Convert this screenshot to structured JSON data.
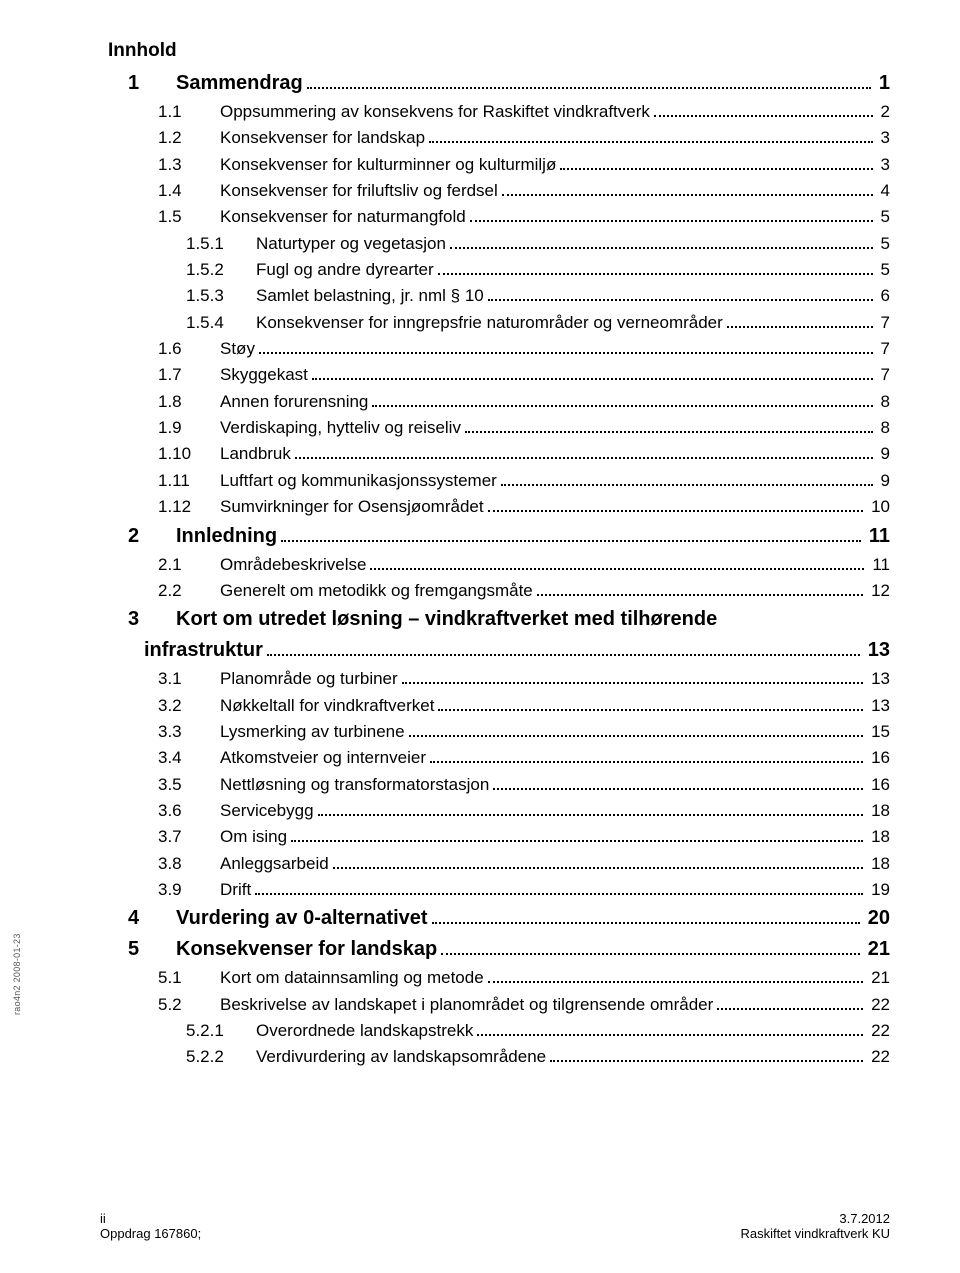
{
  "side_label": "rao4n2 2008-01-23",
  "toc_title": "Innhold",
  "entries": [
    {
      "level": 0,
      "num": "1",
      "label": "Sammendrag",
      "page": "1"
    },
    {
      "level": 1,
      "num": "1.1",
      "label": "Oppsummering av konsekvens for Raskiftet vindkraftverk",
      "page": "2"
    },
    {
      "level": 1,
      "num": "1.2",
      "label": "Konsekvenser for landskap",
      "page": "3"
    },
    {
      "level": 1,
      "num": "1.3",
      "label": "Konsekvenser for kulturminner og kulturmiljø",
      "page": "3"
    },
    {
      "level": 1,
      "num": "1.4",
      "label": "Konsekvenser for friluftsliv og ferdsel",
      "page": "4"
    },
    {
      "level": 1,
      "num": "1.5",
      "label": "Konsekvenser for naturmangfold",
      "page": "5"
    },
    {
      "level": 2,
      "num": "1.5.1",
      "label": "Naturtyper og vegetasjon",
      "page": "5"
    },
    {
      "level": 2,
      "num": "1.5.2",
      "label": "Fugl og andre dyrearter",
      "page": "5"
    },
    {
      "level": 2,
      "num": "1.5.3",
      "label": "Samlet belastning, jr. nml § 10",
      "page": "6"
    },
    {
      "level": 2,
      "num": "1.5.4",
      "label": "Konsekvenser for inngrepsfrie naturområder og verneområder",
      "page": "7"
    },
    {
      "level": 1,
      "num": "1.6",
      "label": "Støy",
      "page": "7"
    },
    {
      "level": 1,
      "num": "1.7",
      "label": "Skyggekast",
      "page": "7"
    },
    {
      "level": 1,
      "num": "1.8",
      "label": "Annen forurensning",
      "page": "8"
    },
    {
      "level": 1,
      "num": "1.9",
      "label": "Verdiskaping, hytteliv og reiseliv",
      "page": "8"
    },
    {
      "level": 1,
      "num": "1.10",
      "label": "Landbruk",
      "page": "9"
    },
    {
      "level": 1,
      "num": "1.11",
      "label": "Luftfart og kommunikasjonssystemer",
      "page": "9"
    },
    {
      "level": 1,
      "num": "1.12",
      "label": "Sumvirkninger for Osensjøområdet",
      "page": "10"
    },
    {
      "level": 0,
      "num": "2",
      "label": "Innledning",
      "page": "11"
    },
    {
      "level": 1,
      "num": "2.1",
      "label": "Områdebeskrivelse",
      "page": "11"
    },
    {
      "level": 1,
      "num": "2.2",
      "label": "Generelt om metodikk og fremgangsmåte",
      "page": "12"
    },
    {
      "level": 0,
      "num": "3",
      "label": "Kort om utredet løsning – vindkraftverket med tilhørende",
      "label2": "infrastruktur",
      "page": "13",
      "wrap": true
    },
    {
      "level": 1,
      "num": "3.1",
      "label": "Planområde og turbiner",
      "page": "13"
    },
    {
      "level": 1,
      "num": "3.2",
      "label": "Nøkkeltall for vindkraftverket",
      "page": "13"
    },
    {
      "level": 1,
      "num": "3.3",
      "label": "Lysmerking av turbinene",
      "page": "15"
    },
    {
      "level": 1,
      "num": "3.4",
      "label": "Atkomstveier og internveier",
      "page": "16"
    },
    {
      "level": 1,
      "num": "3.5",
      "label": "Nettløsning og transformatorstasjon",
      "page": "16"
    },
    {
      "level": 1,
      "num": "3.6",
      "label": "Servicebygg",
      "page": "18"
    },
    {
      "level": 1,
      "num": "3.7",
      "label": "Om ising",
      "page": "18"
    },
    {
      "level": 1,
      "num": "3.8",
      "label": "Anleggsarbeid",
      "page": "18"
    },
    {
      "level": 1,
      "num": "3.9",
      "label": "Drift",
      "page": "19"
    },
    {
      "level": 0,
      "num": "4",
      "label": "Vurdering av 0-alternativet",
      "page": "20"
    },
    {
      "level": 0,
      "num": "5",
      "label": "Konsekvenser for landskap",
      "page": "21"
    },
    {
      "level": 1,
      "num": "5.1",
      "label": "Kort om datainnsamling og metode",
      "page": "21"
    },
    {
      "level": 1,
      "num": "5.2",
      "label": "Beskrivelse av landskapet i planområdet og tilgrensende områder",
      "page": "22"
    },
    {
      "level": 2,
      "num": "5.2.1",
      "label": "Overordnede landskapstrekk",
      "page": "22"
    },
    {
      "level": 2,
      "num": "5.2.2",
      "label": "Verdivurdering av landskapsområdene",
      "page": "22"
    }
  ],
  "footer": {
    "left_line1": "ii",
    "left_line2": "Oppdrag 167860;",
    "right_line1": "3.7.2012",
    "right_line2": "Raskiftet vindkraftverk KU"
  },
  "colors": {
    "text": "#000000",
    "background": "#ffffff",
    "side_label": "#555555"
  },
  "typography": {
    "title_fontsize_pt": 14,
    "level0_fontsize_pt": 15,
    "level1_fontsize_pt": 13,
    "level2_fontsize_pt": 13,
    "footer_fontsize_pt": 10,
    "font_family": "Arial"
  }
}
